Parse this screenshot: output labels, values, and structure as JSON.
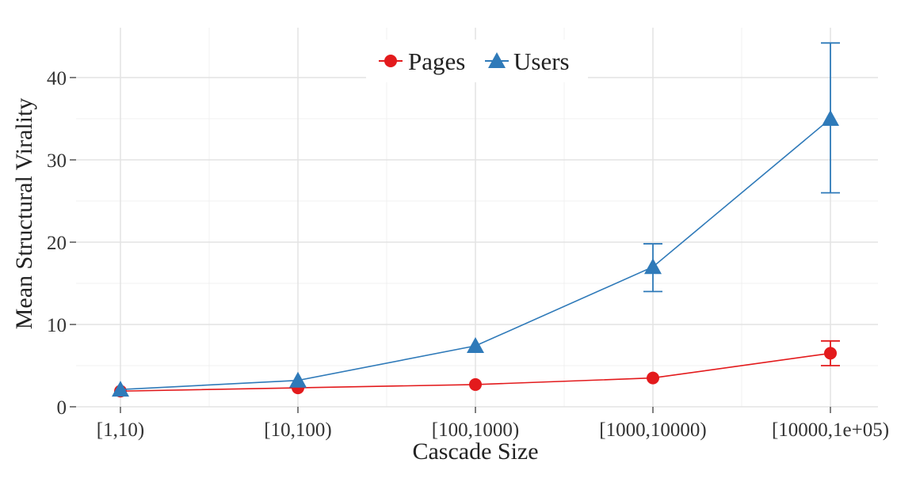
{
  "chart_data": {
    "type": "line",
    "xlabel": "Cascade Size",
    "ylabel": "Mean Structural Virality",
    "categories": [
      "[1,10)",
      "[10,100)",
      "[100,1000)",
      "[1000,10000)",
      "[10000,1e+05)"
    ],
    "ylim": [
      0,
      45
    ],
    "yticks": [
      0,
      10,
      20,
      30,
      40
    ],
    "grid": true,
    "legend_position": "top-center",
    "series": [
      {
        "name": "Pages",
        "marker": "circle",
        "color": "#e31a1c",
        "values": [
          1.9,
          2.3,
          2.7,
          3.5,
          6.5
        ],
        "error_low": [
          null,
          null,
          null,
          null,
          5.0
        ],
        "error_high": [
          null,
          null,
          null,
          null,
          8.0
        ]
      },
      {
        "name": "Users",
        "marker": "triangle",
        "color": "#2f7ab9",
        "values": [
          2.1,
          3.2,
          7.4,
          17.0,
          35.0
        ],
        "error_low": [
          null,
          null,
          null,
          14.0,
          26.0
        ],
        "error_high": [
          null,
          null,
          null,
          19.8,
          44.2
        ]
      }
    ]
  }
}
